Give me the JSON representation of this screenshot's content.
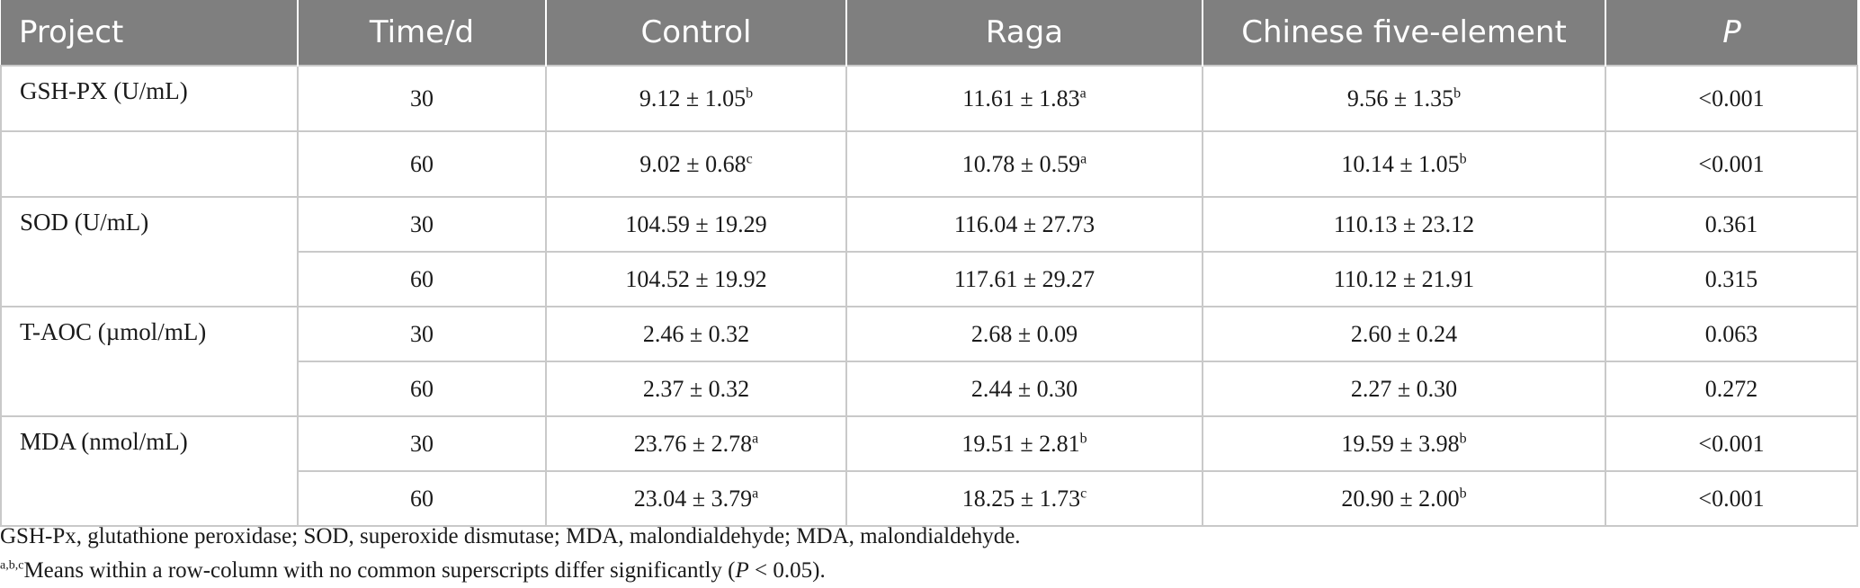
{
  "table": {
    "headers": [
      "Project",
      "Time/d",
      "Control",
      "Raga",
      "Chinese five-element",
      "P"
    ],
    "rows": [
      {
        "project": "GSH-PX (U/mL)",
        "time": "30",
        "control": {
          "v": "9.12 ± 1.05",
          "s": "b"
        },
        "raga": {
          "v": "11.61 ± 1.83",
          "s": "a"
        },
        "five": {
          "v": "9.56 ± 1.35",
          "s": "b"
        },
        "p": "<0.001"
      },
      {
        "project": "",
        "time": "60",
        "control": {
          "v": "9.02 ± 0.68",
          "s": "c"
        },
        "raga": {
          "v": "10.78 ± 0.59",
          "s": "a"
        },
        "five": {
          "v": "10.14 ± 1.05",
          "s": "b"
        },
        "p": "<0.001"
      },
      {
        "project": "SOD (U/mL)",
        "time": "30",
        "control": {
          "v": "104.59 ± 19.29",
          "s": ""
        },
        "raga": {
          "v": "116.04 ± 27.73",
          "s": ""
        },
        "five": {
          "v": "110.13 ± 23.12",
          "s": ""
        },
        "p": "0.361"
      },
      {
        "project": "",
        "time": "60",
        "control": {
          "v": "104.52 ± 19.92",
          "s": ""
        },
        "raga": {
          "v": "117.61 ± 29.27",
          "s": ""
        },
        "five": {
          "v": "110.12 ± 21.91",
          "s": ""
        },
        "p": "0.315"
      },
      {
        "project": "T-AOC (µmol/mL)",
        "time": "30",
        "control": {
          "v": "2.46 ± 0.32",
          "s": ""
        },
        "raga": {
          "v": "2.68 ± 0.09",
          "s": ""
        },
        "five": {
          "v": "2.60 ± 0.24",
          "s": ""
        },
        "p": "0.063"
      },
      {
        "project": "",
        "time": "60",
        "control": {
          "v": "2.37 ± 0.32",
          "s": ""
        },
        "raga": {
          "v": "2.44 ± 0.30",
          "s": ""
        },
        "five": {
          "v": "2.27 ± 0.30",
          "s": ""
        },
        "p": "0.272"
      },
      {
        "project": "MDA (nmol/mL)",
        "time": "30",
        "control": {
          "v": "23.76 ± 2.78",
          "s": "a"
        },
        "raga": {
          "v": "19.51 ± 2.81",
          "s": "b"
        },
        "five": {
          "v": "19.59 ± 3.98",
          "s": "b"
        },
        "p": "<0.001"
      },
      {
        "project": "",
        "time": "60",
        "control": {
          "v": "23.04 ± 3.79",
          "s": "a"
        },
        "raga": {
          "v": "18.25 ± 1.73",
          "s": "c"
        },
        "five": {
          "v": "20.90 ± 2.00",
          "s": "b"
        },
        "p": "<0.001"
      }
    ]
  },
  "footnotes": {
    "abbreviations": "GSH-Px, glutathione peroxidase; SOD, superoxide dismutase; MDA, malondialdehyde; MDA, malondialdehyde.",
    "sig_marks": "a,b,c",
    "sig_text_pre": "Means within a row-column with no common superscripts differ significantly (",
    "sig_p": "P",
    "sig_text_post": " < 0.05)."
  }
}
